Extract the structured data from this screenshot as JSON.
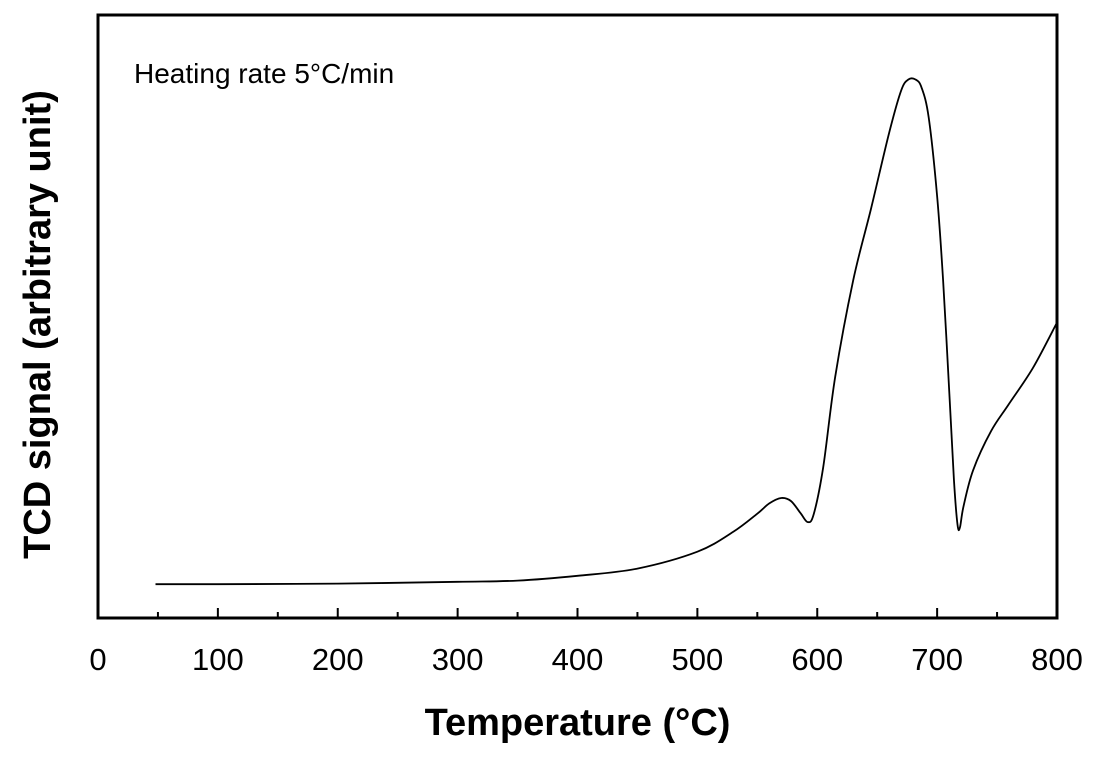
{
  "chart_data": {
    "type": "line",
    "title": "",
    "annotation": "Heating rate 5°C/min",
    "xlabel": "Temperature (°C)",
    "ylabel": "TCD signal (arbitrary unit)",
    "xlim": [
      0,
      800
    ],
    "ylim": [
      0,
      100
    ],
    "xticks": [
      "0",
      "100",
      "200",
      "300",
      "400",
      "500",
      "600",
      "700",
      "800"
    ],
    "xtick_values": [
      0,
      100,
      200,
      300,
      400,
      500,
      600,
      700,
      800
    ],
    "yticks": [],
    "grid": false,
    "legend": "none",
    "series": [
      {
        "color": "#000000",
        "points": [
          [
            48,
            5.6
          ],
          [
            100,
            5.6
          ],
          [
            200,
            5.7
          ],
          [
            300,
            6.0
          ],
          [
            350,
            6.2
          ],
          [
            400,
            7.0
          ],
          [
            450,
            8.2
          ],
          [
            500,
            11.0
          ],
          [
            530,
            14.3
          ],
          [
            550,
            17.3
          ],
          [
            560,
            19.0
          ],
          [
            570,
            19.9
          ],
          [
            578,
            19.4
          ],
          [
            586,
            17.4
          ],
          [
            592,
            15.9
          ],
          [
            597,
            17.2
          ],
          [
            605,
            25.0
          ],
          [
            615,
            40.0
          ],
          [
            630,
            56.0
          ],
          [
            645,
            68.0
          ],
          [
            660,
            80.5
          ],
          [
            670,
            87.5
          ],
          [
            676,
            89.3
          ],
          [
            682,
            89.3
          ],
          [
            687,
            88.0
          ],
          [
            693,
            83.0
          ],
          [
            700,
            70.0
          ],
          [
            705,
            56.0
          ],
          [
            710,
            38.0
          ],
          [
            714,
            23.0
          ],
          [
            717,
            15.5
          ],
          [
            719,
            15.0
          ],
          [
            722,
            18.5
          ],
          [
            730,
            24.5
          ],
          [
            745,
            31.0
          ],
          [
            760,
            35.5
          ],
          [
            780,
            41.5
          ],
          [
            800,
            49.0
          ]
        ]
      }
    ]
  }
}
